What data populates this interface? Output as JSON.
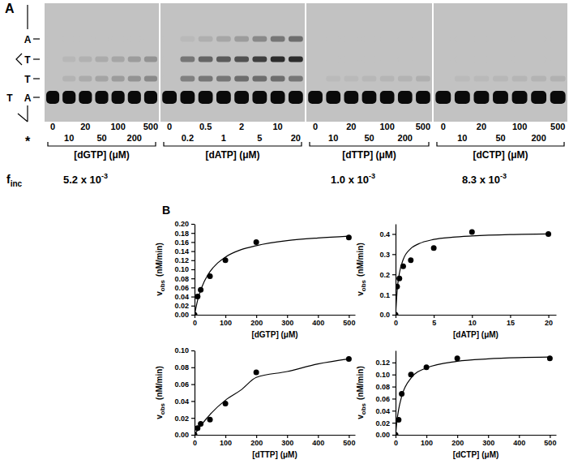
{
  "panel_labels": [
    "A",
    "B"
  ],
  "gel": {
    "sequence": [
      "A",
      "T",
      "T",
      "A"
    ],
    "template_base": "T",
    "end_label": "*",
    "f_inc_label": [
      "f",
      "inc"
    ],
    "groups": [
      {
        "name": "[dGTP] (μM)",
        "lanes": [
          0,
          10,
          20,
          50,
          100,
          200,
          500
        ],
        "bands": [
          [
            0,
            0,
            0
          ],
          [
            0.08,
            0.06,
            0
          ],
          [
            0.12,
            0.09,
            0
          ],
          [
            0.16,
            0.12,
            0
          ],
          [
            0.2,
            0.15,
            0
          ],
          [
            0.25,
            0.2,
            0
          ],
          [
            0.3,
            0.25,
            0
          ]
        ],
        "f_inc": [
          "5.2 x 10",
          "-3"
        ]
      },
      {
        "name": "[dATP] (μM)",
        "lanes": [
          0,
          0.2,
          0.5,
          1,
          2,
          5,
          10,
          20
        ],
        "bands": [
          [
            0,
            0,
            0
          ],
          [
            0.35,
            0.4,
            0.05
          ],
          [
            0.4,
            0.5,
            0.1
          ],
          [
            0.4,
            0.55,
            0.15
          ],
          [
            0.45,
            0.6,
            0.2
          ],
          [
            0.45,
            0.7,
            0.3
          ],
          [
            0.45,
            0.8,
            0.4
          ],
          [
            0.4,
            0.8,
            0.45
          ]
        ],
        "f_inc": null
      },
      {
        "name": "[dTTP] (μM)",
        "lanes": [
          0,
          10,
          20,
          50,
          100,
          200,
          500
        ],
        "bands": [
          [
            0,
            0,
            0
          ],
          [
            0.04,
            0,
            0
          ],
          [
            0.05,
            0,
            0
          ],
          [
            0.06,
            0,
            0
          ],
          [
            0.07,
            0,
            0
          ],
          [
            0.08,
            0,
            0
          ],
          [
            0.1,
            0,
            0
          ]
        ],
        "f_inc": [
          "1.0 x 10",
          "-3"
        ]
      },
      {
        "name": "[dCTP] (μM)",
        "lanes": [
          0,
          10,
          20,
          50,
          100,
          200,
          500
        ],
        "bands": [
          [
            0,
            0,
            0
          ],
          [
            0.04,
            0,
            0
          ],
          [
            0.05,
            0,
            0
          ],
          [
            0.06,
            0,
            0
          ],
          [
            0.07,
            0,
            0
          ],
          [
            0.08,
            0,
            0
          ],
          [
            0.09,
            0,
            0
          ]
        ],
        "f_inc": [
          "8.3 x 10",
          "-3"
        ]
      }
    ]
  },
  "chart_data": [
    {
      "type": "scatter",
      "color": "#000000",
      "marker": "circle",
      "x": [
        0,
        10,
        20,
        50,
        100,
        200,
        500
      ],
      "values": [
        0,
        0.04,
        0.055,
        0.085,
        0.12,
        0.16,
        0.17
      ],
      "fit": {
        "x": [
          0,
          10,
          25,
          50,
          75,
          100,
          150,
          200,
          300,
          400,
          500
        ],
        "values": [
          0,
          0.032,
          0.063,
          0.095,
          0.114,
          0.127,
          0.143,
          0.152,
          0.163,
          0.169,
          0.173
        ]
      },
      "xlabel": "[dGTP] (μM)",
      "ylabel": [
        "v",
        "obs",
        "(nM/min)"
      ],
      "xlim": [
        0,
        520
      ],
      "ylim": [
        0,
        0.2
      ],
      "xticks": [
        0,
        100,
        200,
        300,
        400,
        500
      ],
      "yticks": [
        {
          "value": 0,
          "label": "0.00"
        },
        {
          "value": 0.02,
          "label": "0.02"
        },
        {
          "value": 0.04,
          "label": "0.04"
        },
        {
          "value": 0.06,
          "label": "0.06"
        },
        {
          "value": 0.08,
          "label": "0.08"
        },
        {
          "value": 0.1,
          "label": "0.10"
        },
        {
          "value": 0.12,
          "label": "0.12"
        },
        {
          "value": 0.14,
          "label": "0.14"
        },
        {
          "value": 0.16,
          "label": "0.16"
        },
        {
          "value": 0.18,
          "label": "0.18"
        },
        {
          "value": 0.2,
          "label": "0.20"
        }
      ]
    },
    {
      "type": "scatter",
      "color": "#000000",
      "marker": "circle",
      "x": [
        0,
        0.2,
        0.5,
        1,
        2,
        5,
        10,
        20
      ],
      "values": [
        0,
        0.14,
        0.18,
        0.24,
        0.27,
        0.33,
        0.41,
        0.4
      ],
      "fit": {
        "x": [
          0,
          0.25,
          0.5,
          1,
          2,
          3,
          5,
          7.5,
          10,
          15,
          20
        ],
        "values": [
          0,
          0.137,
          0.205,
          0.273,
          0.328,
          0.351,
          0.373,
          0.384,
          0.39,
          0.397,
          0.4
        ]
      },
      "xlabel": "[dATP] (μM)",
      "ylabel": [
        "v",
        "obs",
        "(nM/min)"
      ],
      "xlim": [
        0,
        21
      ],
      "ylim": [
        0,
        0.45
      ],
      "xticks": [
        0,
        5,
        10,
        15,
        20
      ],
      "yticks": [
        {
          "value": 0,
          "label": "0.0"
        },
        {
          "value": 0.1,
          "label": "0.1"
        },
        {
          "value": 0.2,
          "label": "0.2"
        },
        {
          "value": 0.3,
          "label": "0.3"
        },
        {
          "value": 0.4,
          "label": "0.4"
        }
      ]
    },
    {
      "type": "scatter",
      "color": "#000000",
      "marker": "circle",
      "x": [
        0,
        10,
        20,
        50,
        100,
        200,
        500
      ],
      "values": [
        0,
        0.008,
        0.013,
        0.018,
        0.037,
        0.074,
        0.09
      ],
      "fit": {
        "x": [
          0,
          10,
          25,
          50,
          100,
          150,
          200,
          300,
          400,
          500
        ],
        "values": [
          0,
          0.0057,
          0.013,
          0.024,
          0.041,
          0.053,
          0.068,
          0.075,
          0.084,
          0.09
        ]
      },
      "xlabel": "[dTTP] (μM)",
      "ylabel": [
        "v",
        "obs",
        "(nM/min)"
      ],
      "xlim": [
        0,
        520
      ],
      "ylim": [
        0,
        0.1
      ],
      "xticks": [
        0,
        100,
        200,
        300,
        400,
        500
      ],
      "yticks": [
        {
          "value": 0,
          "label": "0.00"
        },
        {
          "value": 0.02,
          "label": "0.02"
        },
        {
          "value": 0.04,
          "label": "0.04"
        },
        {
          "value": 0.06,
          "label": "0.06"
        },
        {
          "value": 0.08,
          "label": "0.08"
        },
        {
          "value": 0.1,
          "label": "0.10"
        }
      ]
    },
    {
      "type": "scatter",
      "color": "#000000",
      "marker": "circle",
      "x": [
        0,
        10,
        20,
        50,
        100,
        200,
        500
      ],
      "values": [
        0,
        0.025,
        0.068,
        0.1,
        0.112,
        0.127,
        0.127
      ],
      "fit": {
        "x": [
          0,
          5,
          10,
          20,
          50,
          100,
          200,
          300,
          400,
          500
        ],
        "values": [
          0,
          0.025,
          0.042,
          0.064,
          0.094,
          0.111,
          0.122,
          0.126,
          0.128,
          0.129
        ]
      },
      "xlabel": "[dCTP] (μM)",
      "ylabel": [
        "v",
        "obs",
        "(nM/min)"
      ],
      "xlim": [
        0,
        520
      ],
      "ylim": [
        0,
        0.14
      ],
      "xticks": [
        0,
        100,
        200,
        300,
        400,
        500
      ],
      "yticks": [
        {
          "value": 0,
          "label": "0.00"
        },
        {
          "value": 0.02,
          "label": "0.02"
        },
        {
          "value": 0.04,
          "label": "0.04"
        },
        {
          "value": 0.06,
          "label": "0.06"
        },
        {
          "value": 0.08,
          "label": "0.08"
        },
        {
          "value": 0.1,
          "label": "0.10"
        },
        {
          "value": 0.12,
          "label": "0.12"
        }
      ]
    }
  ]
}
